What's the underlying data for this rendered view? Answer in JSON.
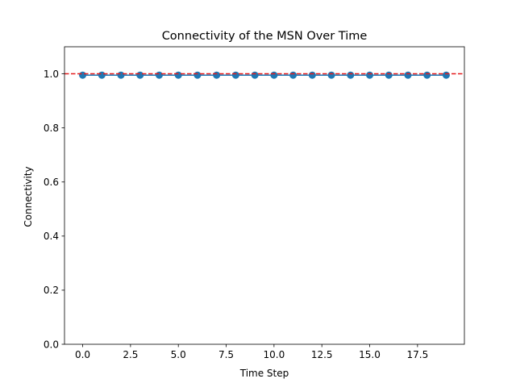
{
  "chart_data": {
    "type": "line",
    "title": "Connectivity of the MSN Over Time",
    "xlabel": "Time Step",
    "ylabel": "Connectivity",
    "xlim": [
      -0.95,
      19.95
    ],
    "ylim": [
      0.0,
      1.1
    ],
    "x_ticks": [
      0.0,
      2.5,
      5.0,
      7.5,
      10.0,
      12.5,
      15.0,
      17.5
    ],
    "x_tick_labels": [
      "0.0",
      "2.5",
      "5.0",
      "7.5",
      "10.0",
      "12.5",
      "15.0",
      "17.5"
    ],
    "y_ticks": [
      0.0,
      0.2,
      0.4,
      0.6,
      0.8,
      1.0
    ],
    "y_tick_labels": [
      "0.0",
      "0.2",
      "0.4",
      "0.6",
      "0.8",
      "1.0"
    ],
    "grid": false,
    "series": [
      {
        "x": [
          0,
          1,
          2,
          3,
          4,
          5,
          6,
          7,
          8,
          9,
          10,
          11,
          12,
          13,
          14,
          15,
          16,
          17,
          18,
          19
        ],
        "y": [
          0.995,
          0.995,
          0.995,
          0.995,
          0.995,
          0.995,
          0.995,
          0.995,
          0.995,
          0.995,
          0.995,
          0.995,
          0.995,
          0.995,
          0.995,
          0.995,
          0.995,
          0.995,
          0.995,
          0.995
        ],
        "color": "#1f77b4",
        "marker": "circle"
      }
    ],
    "reference_lines": [
      {
        "y": 1.0,
        "style": "dashed",
        "color": "#e41a1c"
      }
    ]
  }
}
